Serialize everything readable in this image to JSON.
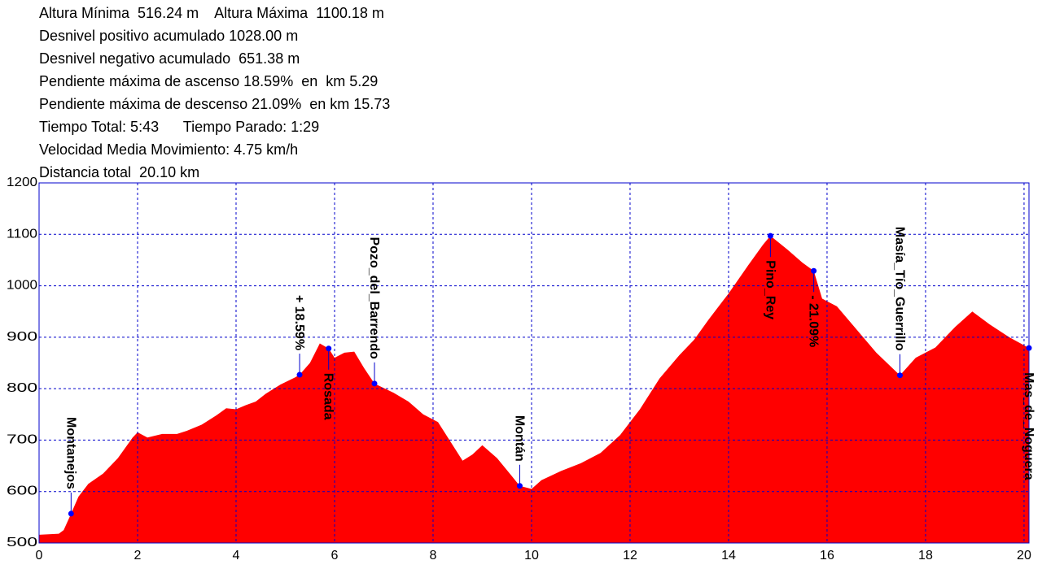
{
  "stats": [
    "Altura Mínima  516.24 m    Altura Máxima  1100.18 m",
    "Desnivel positivo acumulado 1028.00 m",
    "Desnivel negativo acumulado  651.38 m",
    "Pendiente máxima de ascenso 18.59%  en  km 5.29",
    "Pendiente máxima de descenso 21.09%  en km 15.73",
    "Tiempo Total: 5:43      Tiempo Parado: 1:29",
    "Velocidad Media Movimiento: 4.75 km/h",
    "Distancia total  20.10 km"
  ],
  "chart_data": {
    "type": "area",
    "color": "#ff0000",
    "grid": true,
    "x": [
      0,
      0.4,
      0.5,
      0.65,
      0.8,
      1.0,
      1.3,
      1.6,
      1.9,
      2.0,
      2.2,
      2.5,
      2.8,
      3.0,
      3.3,
      3.6,
      3.8,
      4.0,
      4.2,
      4.4,
      4.6,
      4.9,
      5.2,
      5.29,
      5.5,
      5.7,
      5.88,
      6.0,
      6.2,
      6.4,
      6.6,
      6.81,
      7.2,
      7.5,
      7.8,
      8.1,
      8.4,
      8.6,
      8.8,
      9.0,
      9.3,
      9.6,
      9.76,
      10.0,
      10.2,
      10.6,
      11.0,
      11.4,
      11.8,
      12.2,
      12.6,
      13.0,
      13.3,
      13.6,
      14.0,
      14.4,
      14.7,
      14.85,
      15.2,
      15.5,
      15.73,
      15.9,
      16.2,
      16.6,
      17.0,
      17.48,
      17.8,
      18.2,
      18.6,
      18.95,
      19.3,
      19.7,
      20.1
    ],
    "values": [
      516,
      518,
      525,
      557,
      590,
      615,
      635,
      665,
      705,
      715,
      705,
      712,
      712,
      718,
      730,
      748,
      762,
      760,
      768,
      775,
      790,
      808,
      822,
      827,
      850,
      888,
      878,
      860,
      870,
      872,
      840,
      810,
      792,
      775,
      750,
      735,
      690,
      660,
      672,
      690,
      665,
      630,
      611,
      605,
      622,
      640,
      655,
      675,
      710,
      760,
      820,
      865,
      895,
      935,
      985,
      1040,
      1080,
      1097,
      1070,
      1045,
      1029,
      975,
      960,
      915,
      870,
      826,
      860,
      880,
      920,
      950,
      925,
      900,
      879
    ],
    "xlim": [
      0,
      20.1
    ],
    "ylim": [
      500,
      1200
    ],
    "xticks": [
      0,
      2,
      4,
      6,
      8,
      10,
      12,
      14,
      16,
      18,
      20
    ],
    "yticks": [
      500,
      600,
      700,
      800,
      900,
      1000,
      1100,
      1200
    ],
    "waypoints": [
      {
        "x": 0.65,
        "value": 557,
        "label": "Montanejos",
        "position": "above"
      },
      {
        "x": 5.29,
        "value": 827,
        "label": "+ 18.59%",
        "position": "above"
      },
      {
        "x": 5.88,
        "value": 878,
        "label": "Rosada",
        "position": "below"
      },
      {
        "x": 6.81,
        "value": 810,
        "label": "Pozo_del_Barrendo",
        "position": "above"
      },
      {
        "x": 9.76,
        "value": 611,
        "label": "Montán",
        "position": "above"
      },
      {
        "x": 14.85,
        "value": 1097,
        "label": "Pino_Rey",
        "position": "below"
      },
      {
        "x": 15.73,
        "value": 1029,
        "label": "- 21.09%",
        "position": "below"
      },
      {
        "x": 17.48,
        "value": 826,
        "label": "Masía_Tío_Guerrillo",
        "position": "above"
      },
      {
        "x": 20.1,
        "value": 879,
        "label": "Mas_de_Noguera",
        "position": "below"
      }
    ]
  }
}
